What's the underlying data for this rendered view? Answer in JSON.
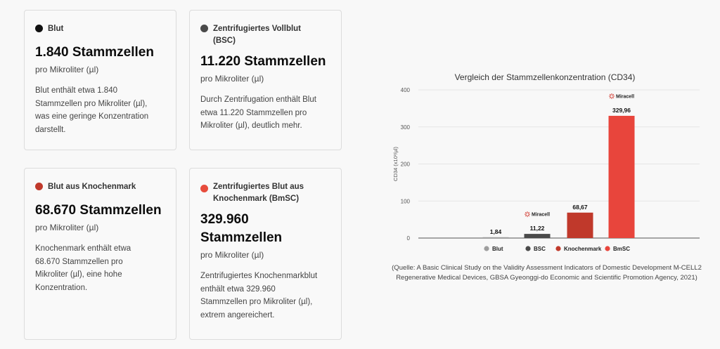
{
  "cards": [
    {
      "name": "Blut",
      "dot_color": "#111111",
      "value": "1.840 Stammzellen",
      "unit": "pro Mikroliter (µl)",
      "desc_lines": [
        "Blut enthält etwa 1.840",
        "Stammzellen pro Mikroliter (µl),",
        "was eine geringe Konzentration",
        "darstellt."
      ]
    },
    {
      "name_lines": [
        "Zentrifugiertes Vollblut",
        "(BSC)"
      ],
      "dot_color": "#4a4a4a",
      "value": "11.220 Stammzellen",
      "unit": "pro Mikroliter (µl)",
      "desc_lines": [
        "Durch Zentrifugation enthält Blut",
        "etwa 11.220 Stammzellen pro",
        "Mikroliter (µl), deutlich mehr."
      ]
    },
    {
      "name": "Blut aus Knochenmark",
      "dot_color": "#c0392b",
      "value": "68.670 Stammzellen",
      "unit": "pro Mikroliter (µl)",
      "desc_lines": [
        "Knochenmark enthält etwa",
        "68.670 Stammzellen pro",
        "Mikroliter (µl), eine hohe",
        "Konzentration."
      ]
    },
    {
      "name_lines": [
        "Zentrifugiertes Blut aus",
        "Knochenmark (BmSC)"
      ],
      "dot_color": "#e74c3c",
      "value_lines": [
        "329.960",
        "Stammzellen"
      ],
      "unit": "pro Mikroliter (µl)",
      "desc_lines": [
        "Zentrifugiertes Knochenmarkblut",
        "enthält etwa 329.960",
        "Stammzellen pro Mikroliter (µl),",
        "extrem angereichert."
      ]
    }
  ],
  "chart_data": {
    "type": "bar",
    "title": "Vergleich der Stammzellenkonzentration (CD34)",
    "ylabel": "CD34 (x10³/µl)",
    "ylim": [
      0,
      400
    ],
    "yticks": [
      0,
      100,
      200,
      300,
      400
    ],
    "grid": true,
    "legend_position": "bottom",
    "categories": [
      "Blut",
      "BSC",
      "Knochenmark",
      "BmSC"
    ],
    "values": [
      1.84,
      11.22,
      68.67,
      329.96
    ],
    "value_labels": [
      "1,84",
      "11,22",
      "68,67",
      "329,96"
    ],
    "colors": [
      "#9e9e9e",
      "#4a4a4a",
      "#c0392b",
      "#e8453c"
    ],
    "brand_label": "Miracell",
    "brand_on": [
      "BSC",
      "BmSC"
    ]
  },
  "source_note_lines": [
    "(Quelle: A Basic Clinical Study on the Validity Assessment Indicators of Domestic Development M-CELL2",
    "Regenerative Medical Devices, GBSA Gyeonggi-do Economic and Scientific Promotion Agency, 2021)"
  ]
}
